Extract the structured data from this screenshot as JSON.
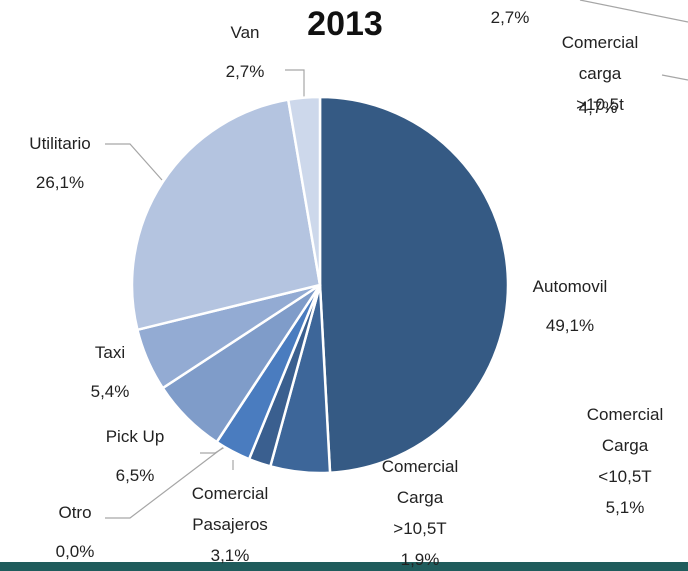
{
  "chart_data": {
    "type": "pie",
    "title": "2013",
    "categories": [
      "Automovil",
      "Comercial\nCarga\n<10,5T",
      "Comercial\nCarga\n>10,5T",
      "Comercial\nPasajeros",
      "Otro",
      "Pick Up",
      "Taxi",
      "Utilitario",
      "Van"
    ],
    "values": [
      49.1,
      5.1,
      1.9,
      3.1,
      0.0,
      6.5,
      5.4,
      26.1,
      2.7
    ],
    "value_labels": [
      "49,1%",
      "5,1%",
      "1,9%",
      "3,1%",
      "0,0%",
      "6,5%",
      "5,4%",
      "26,1%",
      "2,7%"
    ],
    "colors": [
      "#355a84",
      "#3d6699",
      "#3a5f8f",
      "#4a7cbf",
      "#5a86c2",
      "#7f9cc9",
      "#93abd3",
      "#b4c4e0",
      "#cdd8eb"
    ],
    "annotations": [
      "2,7%",
      "Comercial\ncarga >10,5t",
      "4,7%"
    ]
  }
}
